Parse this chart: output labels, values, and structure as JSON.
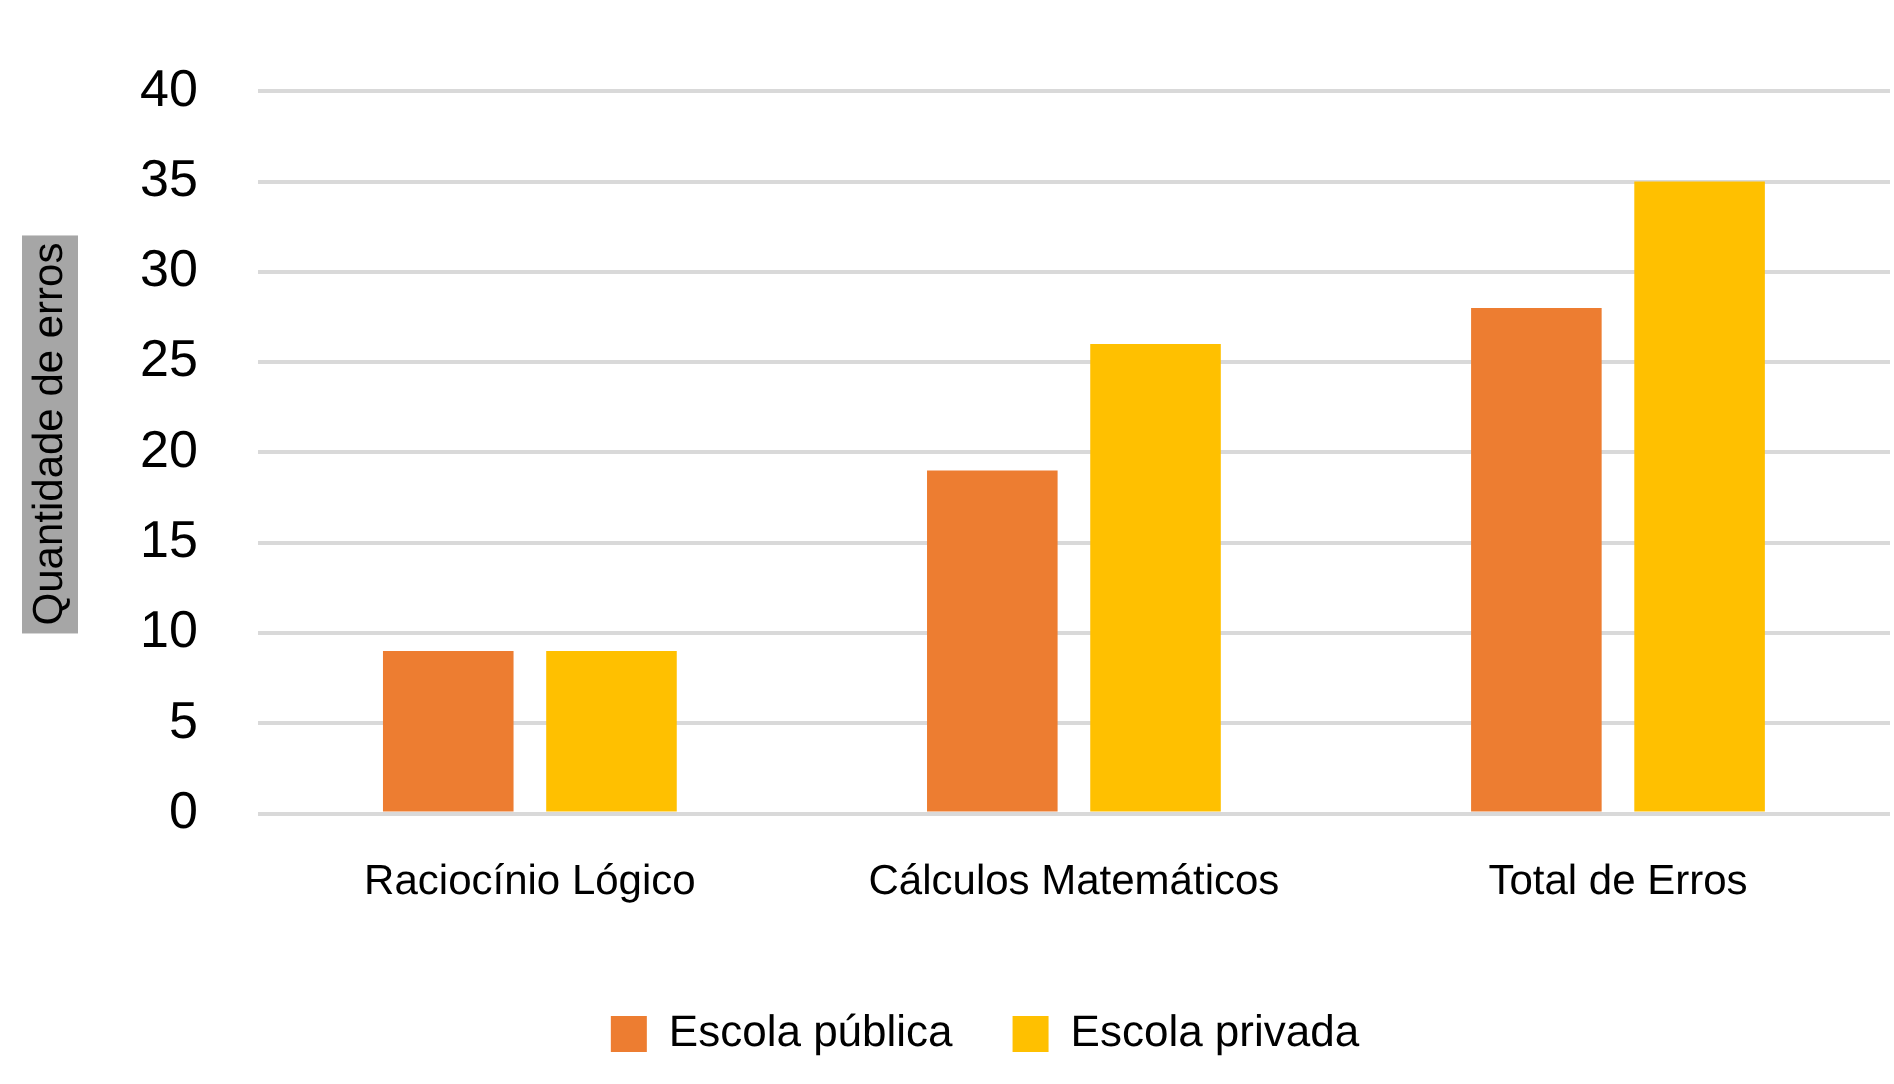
{
  "chart_data": {
    "type": "bar",
    "ylabel": "Quantidade de erros",
    "categories": [
      "Raciocínio Lógico",
      "Cálculos Matemáticos",
      "Total de Erros"
    ],
    "series": [
      {
        "name": "Escola pública",
        "color": "#ed7d31",
        "values": [
          9,
          19,
          28
        ]
      },
      {
        "name": "Escola privada",
        "color": "#ffc000",
        "values": [
          9,
          26,
          35
        ]
      }
    ],
    "ylim": [
      0,
      40
    ],
    "yticks": [
      0,
      5,
      10,
      15,
      20,
      25,
      30,
      35,
      40
    ],
    "grid": "y",
    "legend": "bottom"
  }
}
